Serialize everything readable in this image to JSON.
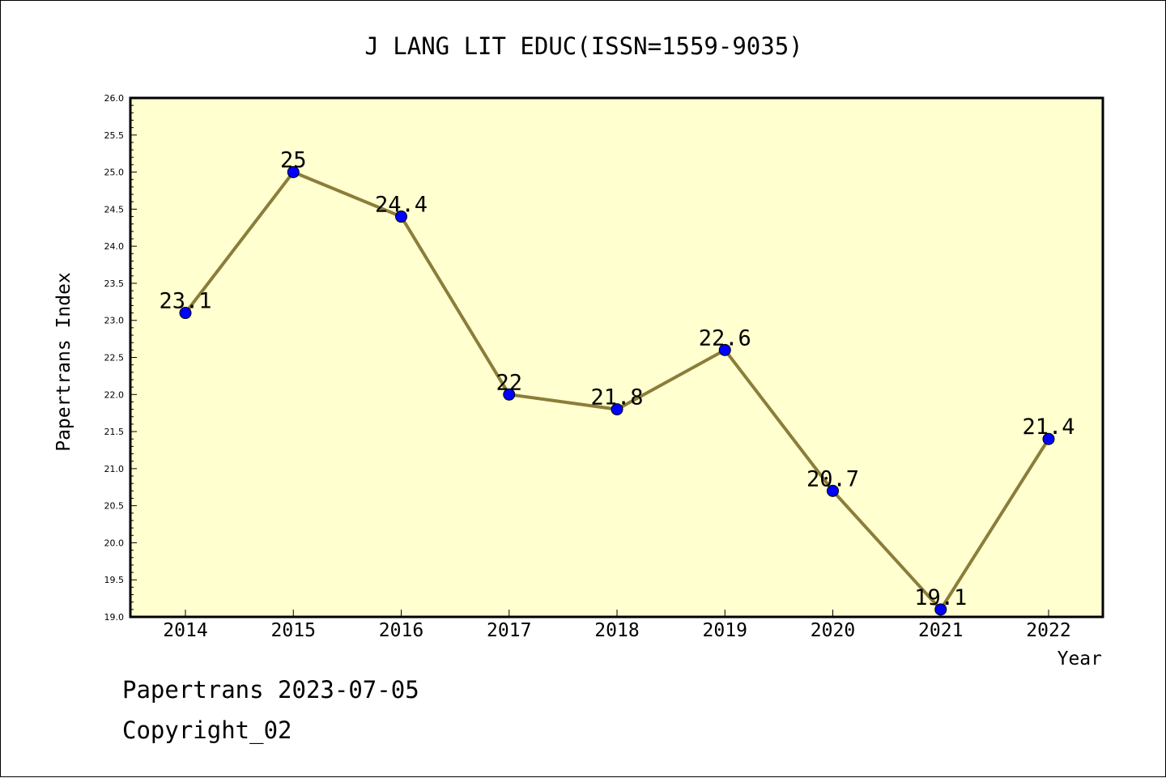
{
  "chart_data": {
    "type": "line",
    "title": "J LANG LIT EDUC(ISSN=1559-9035)",
    "xlabel": "Year",
    "ylabel": "Papertrans Index",
    "categories": [
      "2014",
      "2015",
      "2016",
      "2017",
      "2018",
      "2019",
      "2020",
      "2021",
      "2022"
    ],
    "values": [
      23.1,
      25,
      24.4,
      22,
      21.8,
      22.6,
      20.7,
      19.1,
      21.4
    ],
    "data_labels": [
      "23.1",
      "25",
      "24.4",
      "22",
      "21.8",
      "22.6",
      "20.7",
      "19.1",
      "21.4"
    ],
    "ylim": [
      19.0,
      26.0
    ],
    "yticks": [
      "19.0",
      "19.5",
      "20.0",
      "20.5",
      "21.0",
      "21.5",
      "22.0",
      "22.5",
      "23.0",
      "23.5",
      "24.0",
      "24.5",
      "25.0",
      "25.5",
      "26.0"
    ],
    "grid": false,
    "colors": {
      "plot_background": "#ffffd0",
      "line": "#8b7d3a",
      "marker": "#0000ff"
    }
  },
  "footer": {
    "line1": "Papertrans 2023-07-05",
    "line2": "Copyright_02"
  }
}
